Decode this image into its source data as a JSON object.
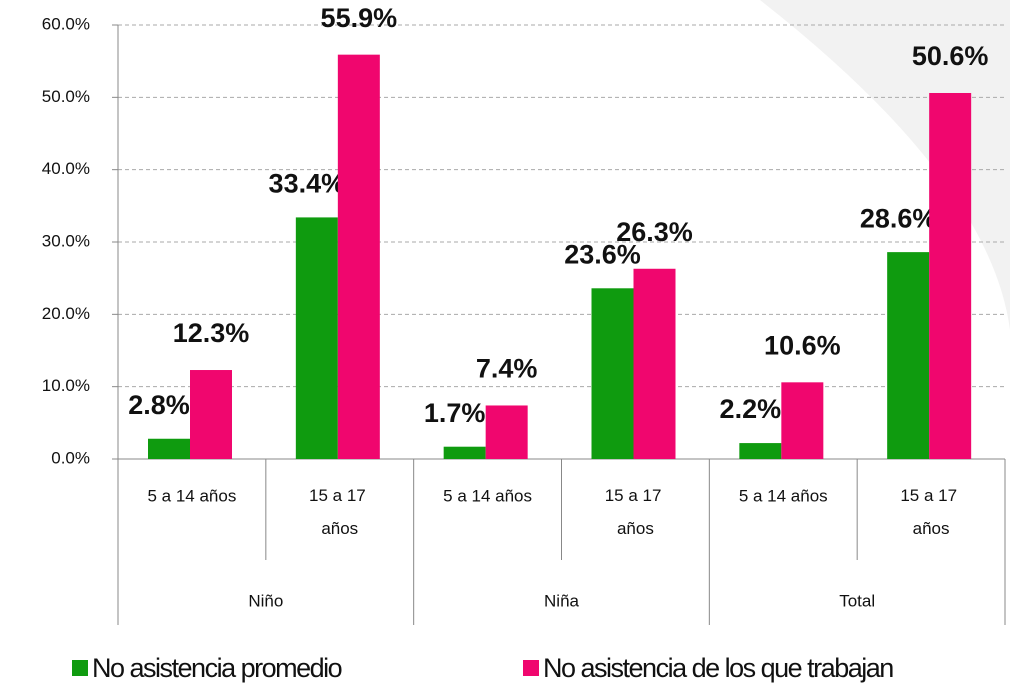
{
  "chart_data": {
    "type": "bar",
    "categories": [
      "5 a 14 años",
      "15 a 17 años",
      "5 a 14 años",
      "15 a 17 años",
      "5 a 14 años",
      "15 a 17 años"
    ],
    "category_groups": [
      "Niño",
      "Niña",
      "Total"
    ],
    "series": [
      {
        "name": "No asistencia promedio",
        "color": "#0f9b0f",
        "values": [
          2.8,
          33.4,
          1.7,
          23.6,
          2.2,
          28.6
        ],
        "value_labels": [
          "2.8%",
          "33.4%",
          "1.7%",
          "23.6%",
          "2.2%",
          "28.6%"
        ]
      },
      {
        "name": "No asistencia de los que trabajan",
        "color": "#f0066e",
        "values": [
          12.3,
          55.9,
          7.4,
          26.3,
          10.6,
          50.6
        ],
        "value_labels": [
          "12.3%",
          "55.9%",
          "7.4%",
          "26.3%",
          "10.6%",
          "50.6%"
        ]
      }
    ],
    "ylim": [
      0,
      60
    ],
    "yticks": [
      {
        "value": 0,
        "label": "0.0%"
      },
      {
        "value": 10,
        "label": "10.0%"
      },
      {
        "value": 20,
        "label": "20.0%"
      },
      {
        "value": 30,
        "label": "30.0%"
      },
      {
        "value": 40,
        "label": "40.0%"
      },
      {
        "value": 50,
        "label": "50.0%"
      },
      {
        "value": 60,
        "label": "60.0%"
      }
    ],
    "grid": true,
    "legend": "bottom"
  }
}
